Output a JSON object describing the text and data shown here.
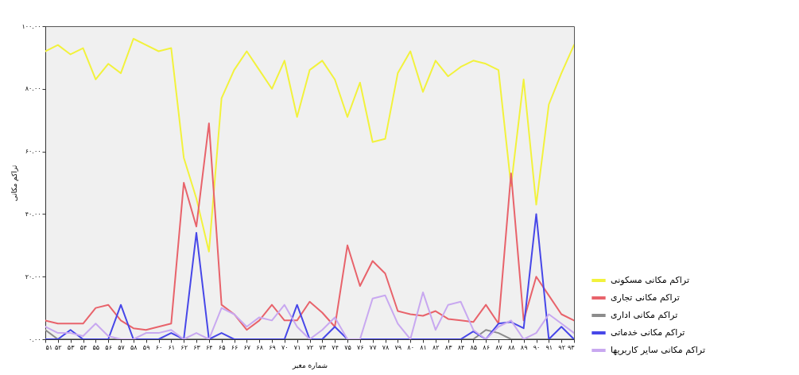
{
  "chart_data": {
    "type": "line",
    "xlabel": "شماره معبر",
    "ylabel": "تراکم مکانی",
    "categories": [
      "۵۱",
      "۵۲",
      "۵۳",
      "۵۴",
      "۵۵",
      "۵۶",
      "۵۷",
      "۵۸",
      "۵۹",
      "۶۰",
      "۶۱",
      "۶۲",
      "۶۳",
      "۶۴",
      "۶۵",
      "۶۶",
      "۶۷",
      "۶۸",
      "۶۹",
      "۷۰",
      "۷۱",
      "۷۲",
      "۷۳",
      "۷۴",
      "۷۵",
      "۷۶",
      "۷۷",
      "۷۸",
      "۷۹",
      "۸۰",
      "۸۱",
      "۸۲",
      "۸۳",
      "۸۴",
      "۸۵",
      "۸۶",
      "۸۷",
      "۸۸",
      "۸۹",
      "۹۰",
      "۹۱",
      "۹۲",
      "۹۳"
    ],
    "series": [
      {
        "name": "تراکم مکانی مسکونی",
        "color": "#f2f23c",
        "values": [
          92,
          94,
          91,
          93,
          83,
          88,
          85,
          96,
          94,
          92,
          93,
          58,
          45,
          28,
          77,
          86,
          92,
          86,
          80,
          89,
          71,
          86,
          89,
          83,
          71,
          82,
          63,
          64,
          85,
          92,
          79,
          89,
          84,
          87,
          89,
          88,
          86,
          49,
          83,
          43,
          75,
          85,
          94
        ]
      },
      {
        "name": "تراکم مکانی تجاری",
        "color": "#e8636b",
        "values": [
          6,
          5,
          5,
          5,
          10,
          11,
          6,
          3.5,
          3,
          4,
          5,
          50,
          36,
          69,
          11,
          8,
          3,
          6,
          11,
          6,
          6,
          12,
          8.5,
          4,
          30,
          17,
          25,
          21,
          9,
          8,
          7.5,
          9,
          6.5,
          6,
          5.5,
          11,
          5,
          53,
          6,
          20,
          14,
          8,
          6
        ]
      },
      {
        "name": "تراکم مکانی اداری",
        "color": "#8c8c8c",
        "values": [
          3,
          0,
          0,
          0,
          0,
          0,
          0,
          0,
          0,
          0,
          0,
          0,
          0,
          0,
          0,
          0,
          0,
          0,
          0,
          0,
          0,
          0,
          0,
          0,
          0,
          0,
          0,
          0,
          0,
          0,
          0,
          0,
          0,
          0,
          0,
          3,
          2,
          0,
          0,
          0,
          0,
          0,
          0
        ]
      },
      {
        "name": "تراکم مکانی خدماتی",
        "color": "#4747e8",
        "values": [
          0,
          0,
          3,
          0,
          0,
          0,
          11,
          0,
          0,
          0,
          2,
          0,
          34,
          0,
          2,
          0,
          0,
          0,
          0,
          0,
          11,
          0,
          0,
          4,
          0,
          0,
          0,
          0,
          0,
          0,
          0,
          0,
          0,
          0,
          2.5,
          0,
          5,
          5.5,
          3.5,
          40,
          0,
          4,
          0
        ]
      },
      {
        "name": "تراکم مکانی سایر کاربریها",
        "color": "#c8a8f0",
        "values": [
          4,
          2,
          2,
          1,
          5,
          1,
          0,
          0,
          2,
          2,
          3,
          0,
          2,
          0,
          10,
          8,
          4,
          7,
          6,
          11,
          4,
          0,
          3,
          7,
          0,
          0,
          13,
          14,
          5,
          0,
          15,
          3,
          11,
          12,
          3,
          0,
          4,
          6,
          0,
          2,
          8,
          5,
          2
        ]
      }
    ],
    "ylim": [
      0,
      100
    ],
    "yticks": [
      {
        "value": 0,
        "label": "۰.۰۰"
      },
      {
        "value": 20,
        "label": "۲۰.۰۰"
      },
      {
        "value": 40,
        "label": "۴۰.۰۰"
      },
      {
        "value": 60,
        "label": "۶۰.۰۰"
      },
      {
        "value": 80,
        "label": "۸۰.۰۰"
      },
      {
        "value": 100,
        "label": "۱۰۰.۰۰"
      }
    ],
    "legend": "bottom right",
    "grid": false,
    "marker": "none"
  }
}
